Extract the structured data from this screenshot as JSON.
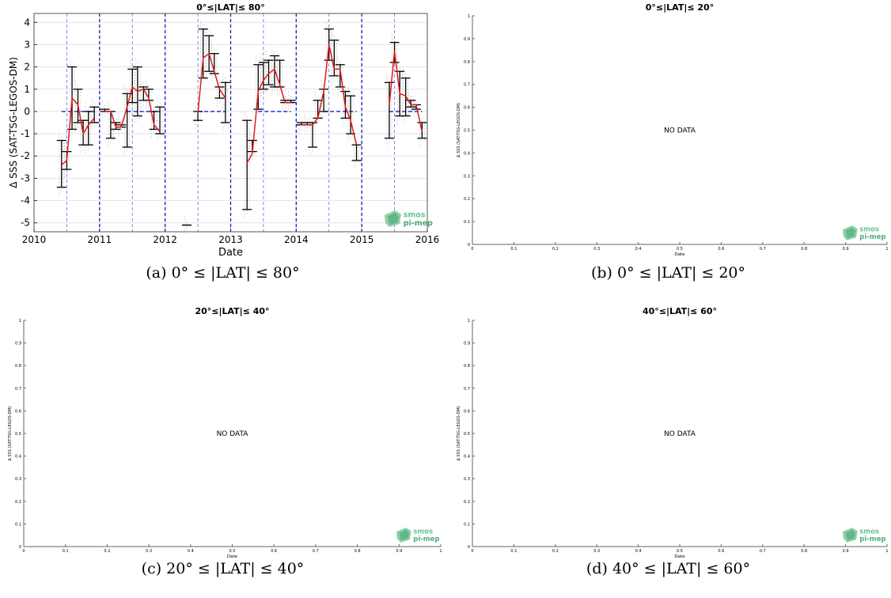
{
  "chart_data": [
    {
      "type": "line",
      "title": "0°≤|LAT|≤ 80°",
      "xlabel": "Date",
      "ylabel": "Δ SSS (SAT-TSG-LEGOS-DM)",
      "xlim": [
        2010,
        2016
      ],
      "ylim": [
        -5.4,
        4.4
      ],
      "xticks": [
        "2010",
        "2011",
        "2012",
        "2013",
        "2014",
        "2015",
        "2016"
      ],
      "yticks": [
        "-5",
        "-4",
        "-3",
        "-2",
        "-1",
        "0",
        "1",
        "2",
        "3",
        "4"
      ],
      "grid": true,
      "legend": "none",
      "zero_line": 0,
      "colors": {
        "mean": "#e31a1c",
        "errorbar": "#000000",
        "year_lines": "#1a1acc",
        "mid_lines": "#6a6ad8",
        "scatter": "#888888"
      },
      "series": [
        {
          "x": [
            2010.42,
            2010.5,
            2010.58,
            2010.67,
            2010.75,
            2010.83,
            2010.92
          ],
          "y": [
            -2.4,
            -2.2,
            0.6,
            0.3,
            -1.0,
            -0.6,
            -0.3
          ],
          "err_low": [
            -3.4,
            -2.6,
            -0.8,
            -0.5,
            -1.5,
            -1.5,
            -0.5
          ],
          "err_high": [
            -1.3,
            -1.8,
            2.0,
            1.0,
            -0.4,
            0.0,
            0.2
          ]
        },
        {
          "x": [
            2011.08,
            2011.17,
            2011.25,
            2011.33,
            2011.42,
            2011.5,
            2011.58,
            2011.67,
            2011.75,
            2011.83,
            2011.92
          ],
          "y": [
            0.0,
            0.0,
            -0.7,
            -0.7,
            0.2,
            1.1,
            0.9,
            1.0,
            0.6,
            -0.6,
            -0.9
          ],
          "err_low": [
            0.0,
            -1.2,
            -0.8,
            -0.7,
            -1.6,
            0.4,
            -0.2,
            0.5,
            0.5,
            -0.8,
            -1.0
          ],
          "err_high": [
            0.1,
            0.0,
            -0.5,
            -0.6,
            0.8,
            1.9,
            2.0,
            1.1,
            1.0,
            0.0,
            0.2
          ]
        },
        {
          "x": [
            2012.33
          ],
          "y": [
            -5.1
          ],
          "err_low": [
            -5.1
          ],
          "err_high": [
            -5.1
          ]
        },
        {
          "x": [
            2012.5,
            2012.58,
            2012.67,
            2012.75,
            2012.83,
            2012.92
          ],
          "y": [
            -0.1,
            2.4,
            2.6,
            1.8,
            1.0,
            0.6
          ],
          "err_low": [
            -0.4,
            1.5,
            1.8,
            1.7,
            0.6,
            -0.5
          ],
          "err_high": [
            0.0,
            3.7,
            3.4,
            2.6,
            1.1,
            1.3
          ]
        },
        {
          "x": [
            2013.25,
            2013.33,
            2013.42,
            2013.5,
            2013.58,
            2013.67,
            2013.75,
            2013.83,
            2013.92
          ],
          "y": [
            -2.3,
            -1.9,
            0.9,
            1.4,
            1.7,
            1.9,
            1.2,
            0.4,
            0.4
          ],
          "err_low": [
            -4.4,
            -1.8,
            0.1,
            1.0,
            1.2,
            1.1,
            1.1,
            0.4,
            0.4
          ],
          "err_high": [
            -0.4,
            -1.3,
            2.1,
            2.2,
            2.3,
            2.5,
            2.3,
            0.5,
            0.5
          ]
        },
        {
          "x": [
            2014.08,
            2014.17,
            2014.25,
            2014.33,
            2014.42,
            2014.5,
            2014.58,
            2014.67,
            2014.75,
            2014.83,
            2014.92
          ],
          "y": [
            -0.6,
            -0.6,
            -0.6,
            -0.3,
            0.9,
            3.0,
            1.9,
            1.9,
            0.2,
            -0.4,
            -1.5
          ],
          "err_low": [
            -0.6,
            -0.6,
            -1.6,
            -0.3,
            0.0,
            2.3,
            1.6,
            1.1,
            -0.3,
            -1.0,
            -2.2
          ],
          "err_high": [
            -0.5,
            -0.5,
            -0.5,
            0.5,
            1.0,
            3.7,
            3.2,
            2.1,
            0.9,
            0.7,
            -1.5
          ]
        },
        {
          "x": [
            2015.42,
            2015.5,
            2015.58,
            2015.67,
            2015.75,
            2015.83,
            2015.92
          ],
          "y": [
            0.3,
            2.7,
            0.8,
            0.7,
            0.3,
            0.3,
            -0.9
          ],
          "err_low": [
            -1.2,
            2.2,
            -0.2,
            -0.2,
            0.2,
            0.1,
            -1.2
          ],
          "err_high": [
            1.3,
            3.1,
            1.8,
            1.5,
            0.5,
            0.3,
            -0.5
          ]
        }
      ],
      "logo": {
        "line1": "smos",
        "line2": "pi-mep"
      }
    },
    {
      "type": "line",
      "title": "0°≤|LAT|≤ 20°",
      "xlabel": "Date",
      "ylabel": "Δ SSS (SAT-TSG-LEGOS-DM)",
      "xlim": [
        0,
        1
      ],
      "ylim": [
        0,
        1
      ],
      "xticks": [
        "0",
        "0.1",
        "0.2",
        "0.3",
        "0.4",
        "0.5",
        "0.6",
        "0.7",
        "0.8",
        "0.9",
        "1"
      ],
      "yticks": [
        "0",
        "0.1",
        "0.2",
        "0.3",
        "0.4",
        "0.5",
        "0.6",
        "0.7",
        "0.8",
        "0.9",
        "1"
      ],
      "annotation": "NO DATA",
      "series": [],
      "logo": {
        "line1": "smos",
        "line2": "pi-mep"
      }
    },
    {
      "type": "line",
      "title": "20°≤|LAT|≤ 40°",
      "xlabel": "Date",
      "ylabel": "Δ SSS (SAT-TSG-LEGOS-DM)",
      "xlim": [
        0,
        1
      ],
      "ylim": [
        0,
        1
      ],
      "xticks": [
        "0",
        "0.1",
        "0.2",
        "0.3",
        "0.4",
        "0.5",
        "0.6",
        "0.7",
        "0.8",
        "0.9",
        "1"
      ],
      "yticks": [
        "0",
        "0.1",
        "0.2",
        "0.3",
        "0.4",
        "0.5",
        "0.6",
        "0.7",
        "0.8",
        "0.9",
        "1"
      ],
      "annotation": "NO DATA",
      "series": [],
      "logo": {
        "line1": "smos",
        "line2": "pi-mep"
      }
    },
    {
      "type": "line",
      "title": "40°≤|LAT|≤ 60°",
      "xlabel": "Date",
      "ylabel": "Δ SSS (SAT-TSG-LEGOS-DM)",
      "xlim": [
        0,
        1
      ],
      "ylim": [
        0,
        1
      ],
      "xticks": [
        "0",
        "0.1",
        "0.2",
        "0.3",
        "0.4",
        "0.5",
        "0.6",
        "0.7",
        "0.8",
        "0.9",
        "1"
      ],
      "yticks": [
        "0",
        "0.1",
        "0.2",
        "0.3",
        "0.4",
        "0.5",
        "0.6",
        "0.7",
        "0.8",
        "0.9",
        "1"
      ],
      "annotation": "NO DATA",
      "series": [],
      "logo": {
        "line1": "smos",
        "line2": "pi-mep"
      }
    }
  ],
  "captions": {
    "a": "(a) 0° ≤ |LAT| ≤ 80°",
    "b": "(b) 0° ≤ |LAT| ≤ 20°",
    "c": "(c) 20° ≤ |LAT| ≤ 40°",
    "d": "(d) 40° ≤ |LAT| ≤ 60°"
  }
}
